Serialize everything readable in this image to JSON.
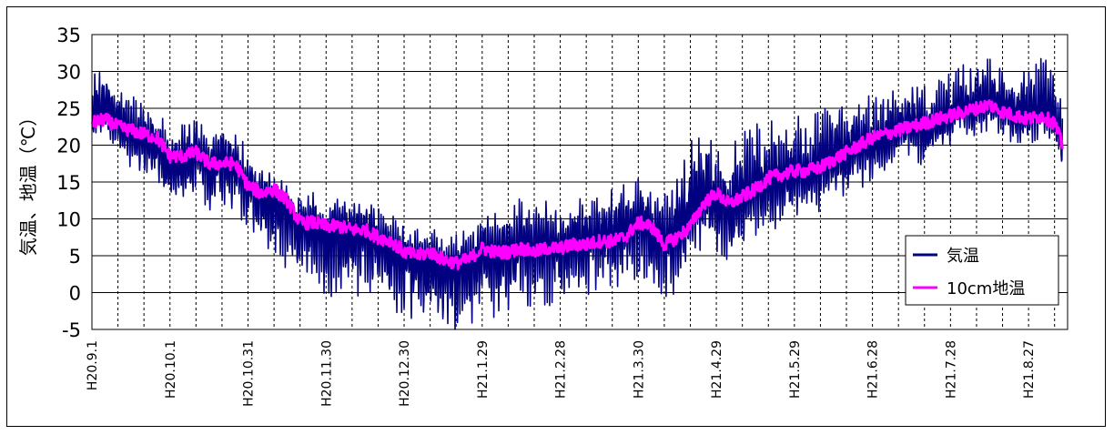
{
  "chart_data": {
    "type": "line",
    "title": "",
    "xlabel": "",
    "ylabel": "気温、地温（℃）",
    "ylim": [
      -5,
      35
    ],
    "y_ticks": [
      35,
      30,
      25,
      20,
      15,
      10,
      5,
      0,
      -5
    ],
    "x_tick_labels": [
      "H20.9.1",
      "H20.10.1",
      "H20.10.31",
      "H20.11.30",
      "H20.12.30",
      "H21.1.29",
      "H21.2.28",
      "H21.3.30",
      "H21.4.29",
      "H21.5.29",
      "H21.6.28",
      "H21.7.28",
      "H21.8.27"
    ],
    "x_tick_days": [
      0,
      30,
      60,
      90,
      120,
      150,
      180,
      210,
      240,
      270,
      300,
      330,
      360
    ],
    "x_range_days": [
      0,
      375
    ],
    "grid": "horizontal solid, vertical dashed every 10 days",
    "legend_position": "bottom-right",
    "x_day_samples": [
      0,
      5,
      10,
      15,
      20,
      25,
      30,
      35,
      40,
      45,
      50,
      55,
      60,
      65,
      70,
      75,
      80,
      85,
      90,
      95,
      100,
      105,
      110,
      115,
      120,
      125,
      130,
      135,
      140,
      145,
      150,
      155,
      160,
      165,
      170,
      175,
      180,
      185,
      190,
      195,
      200,
      205,
      210,
      215,
      220,
      225,
      230,
      235,
      240,
      245,
      250,
      255,
      260,
      265,
      270,
      275,
      280,
      285,
      290,
      295,
      300,
      305,
      310,
      315,
      320,
      325,
      330,
      335,
      340,
      345,
      350,
      355,
      360,
      365,
      370,
      373
    ],
    "series": [
      {
        "name": "気温",
        "color": "#000080",
        "values": [
          24,
          25,
          23,
          22,
          21,
          20,
          17,
          18,
          19,
          17,
          18,
          17,
          15,
          13,
          12,
          11,
          9,
          10,
          8,
          9,
          8,
          8,
          7,
          6,
          5,
          4,
          4,
          3,
          3,
          4,
          6,
          5,
          6,
          7,
          6,
          7,
          6,
          7,
          7,
          8,
          8,
          9,
          10,
          8,
          7,
          8,
          11,
          13,
          12,
          11,
          13,
          14,
          15,
          15,
          16,
          16,
          17,
          18,
          19,
          20,
          20,
          21,
          22,
          23,
          22,
          23,
          24,
          25,
          25,
          26,
          25,
          24,
          24,
          25,
          24,
          20
        ],
        "spread_low": [
          3,
          4,
          5,
          5,
          6,
          6,
          6,
          6,
          6,
          7,
          7,
          7,
          7,
          7,
          8,
          8,
          8,
          8,
          9,
          9,
          9,
          9,
          9,
          9,
          9,
          9,
          9,
          9,
          9,
          9,
          9,
          9,
          9,
          9,
          9,
          9,
          8,
          8,
          8,
          8,
          8,
          8,
          8,
          8,
          8,
          8,
          7,
          7,
          7,
          7,
          7,
          7,
          7,
          6,
          6,
          6,
          6,
          6,
          6,
          6,
          5,
          5,
          5,
          5,
          5,
          4,
          4,
          4,
          4,
          4,
          4,
          4,
          4,
          4,
          4,
          4
        ],
        "spread_high": [
          6,
          6,
          6,
          5,
          5,
          5,
          5,
          5,
          5,
          5,
          5,
          5,
          5,
          4,
          4,
          4,
          4,
          4,
          4,
          5,
          5,
          5,
          5,
          5,
          5,
          5,
          5,
          5,
          5,
          5,
          5,
          6,
          6,
          6,
          6,
          6,
          6,
          6,
          6,
          6,
          6,
          6,
          6,
          6,
          7,
          8,
          10,
          11,
          10,
          9,
          9,
          9,
          9,
          8,
          8,
          8,
          8,
          8,
          7,
          7,
          7,
          7,
          6,
          6,
          6,
          6,
          6,
          6,
          6,
          6,
          6,
          6,
          7,
          7,
          7,
          7
        ]
      },
      {
        "name": "10cm地温",
        "color": "#ff00ff",
        "values": [
          23,
          23.5,
          22.5,
          22,
          21.5,
          21,
          18.5,
          18.5,
          19,
          17.5,
          17.5,
          17.5,
          14.5,
          13.5,
          14,
          12.5,
          9.5,
          9.5,
          9,
          9,
          8.5,
          8.5,
          7.5,
          7,
          5.5,
          5,
          5.5,
          4.5,
          4,
          4.5,
          6,
          5.5,
          5.5,
          6,
          5.5,
          6,
          6,
          6.5,
          6.5,
          7,
          7,
          7.5,
          9.5,
          9,
          6.5,
          7.5,
          9,
          12,
          13.5,
          12,
          13,
          14,
          15.5,
          16,
          16.5,
          16.5,
          17,
          18,
          19,
          20,
          21,
          21.5,
          22,
          22.5,
          23,
          23.5,
          24,
          24.5,
          25,
          25.5,
          24.5,
          24,
          23.5,
          24,
          23,
          20
        ]
      }
    ]
  }
}
